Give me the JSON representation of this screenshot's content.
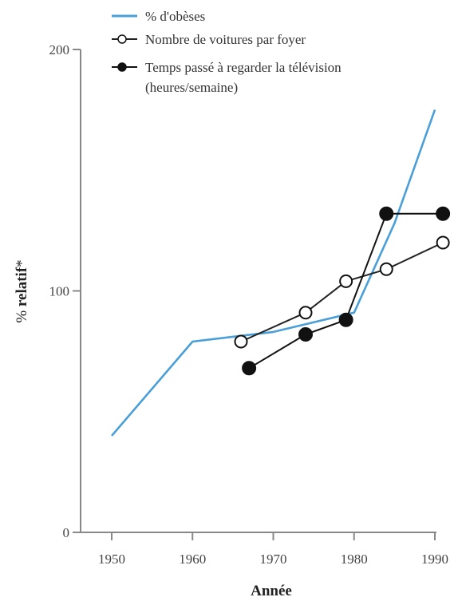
{
  "chart_data": {
    "type": "line",
    "xlabel": "Année",
    "ylabel_prefix": "% ",
    "ylabel_bold": "relatif",
    "ylabel_suffix": "*",
    "xlim": [
      1950,
      1990
    ],
    "ylim": [
      0,
      200
    ],
    "x_ticks": [
      "1950",
      "1960",
      "1970",
      "1980",
      "1990"
    ],
    "y_ticks": [
      "0",
      "100",
      "200"
    ],
    "grid": false,
    "legend_position": "top-left",
    "series": [
      {
        "name": "% d'obèses",
        "marker": "none",
        "color": "#4a9fd8",
        "points": [
          {
            "x": 1950,
            "y": 40
          },
          {
            "x": 1960,
            "y": 79
          },
          {
            "x": 1970,
            "y": 83
          },
          {
            "x": 1980,
            "y": 91
          },
          {
            "x": 1985,
            "y": 128
          },
          {
            "x": 1990,
            "y": 175
          }
        ]
      },
      {
        "name": "Nombre de voitures par foyer",
        "marker": "open-circle",
        "color": "#222222",
        "points": [
          {
            "x": 1966,
            "y": 79
          },
          {
            "x": 1974,
            "y": 91
          },
          {
            "x": 1979,
            "y": 104
          },
          {
            "x": 1984,
            "y": 109
          },
          {
            "x": 1991,
            "y": 120
          }
        ]
      },
      {
        "name": "Temps passé à regarder la télévision",
        "name_line2": "(heures/semaine)",
        "marker": "filled-circle",
        "color": "#111111",
        "points": [
          {
            "x": 1967,
            "y": 68
          },
          {
            "x": 1974,
            "y": 82
          },
          {
            "x": 1979,
            "y": 88
          },
          {
            "x": 1984,
            "y": 132
          },
          {
            "x": 1991,
            "y": 132
          }
        ]
      }
    ]
  }
}
